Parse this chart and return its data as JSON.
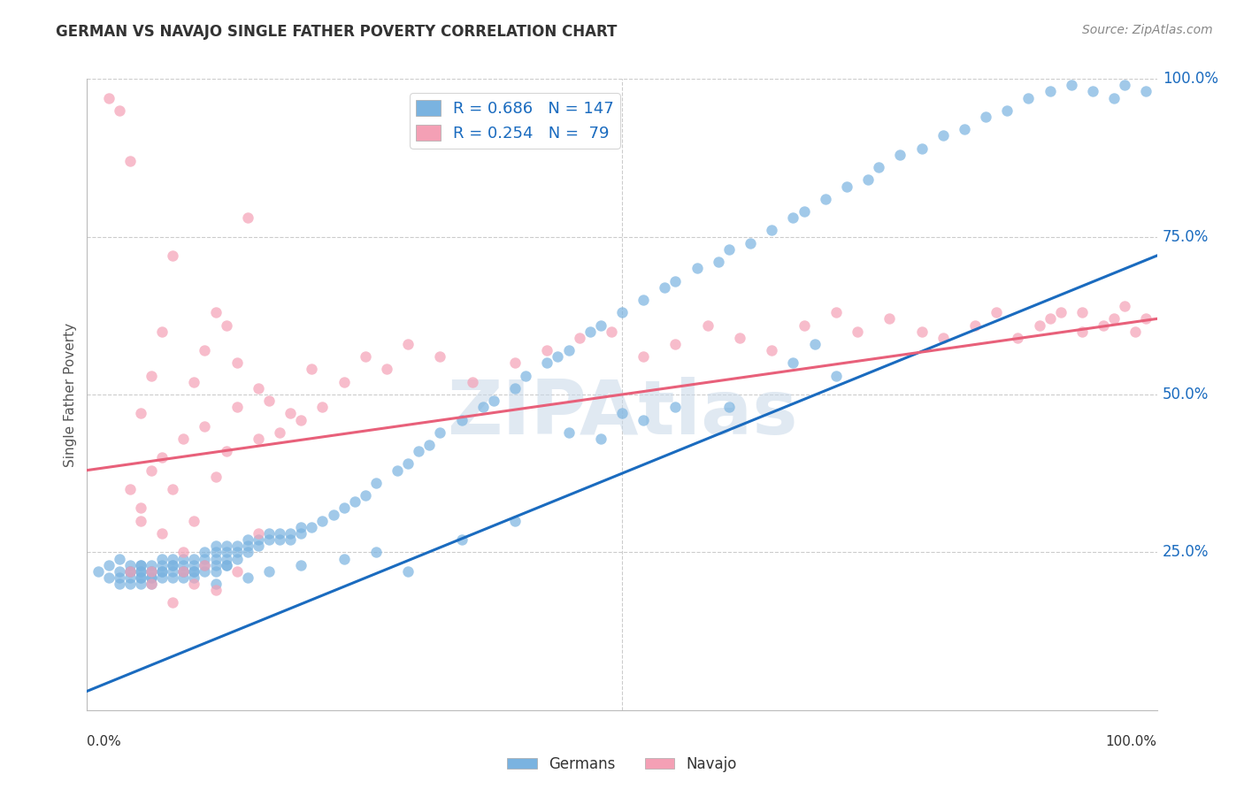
{
  "title": "GERMAN VS NAVAJO SINGLE FATHER POVERTY CORRELATION CHART",
  "source": "Source: ZipAtlas.com",
  "ylabel": "Single Father Poverty",
  "xlim": [
    0.0,
    1.0
  ],
  "ylim": [
    0.0,
    1.0
  ],
  "ytick_labels": [
    "25.0%",
    "50.0%",
    "75.0%",
    "100.0%"
  ],
  "ytick_values": [
    0.25,
    0.5,
    0.75,
    1.0
  ],
  "blue_R": 0.686,
  "blue_N": 147,
  "pink_R": 0.254,
  "pink_N": 79,
  "blue_color": "#7ab3e0",
  "pink_color": "#f4a0b5",
  "blue_line_color": "#1a6bbf",
  "pink_line_color": "#e8607a",
  "bottom_legend_blue": "Germans",
  "bottom_legend_pink": "Navajo",
  "watermark": "ZIPAtlas",
  "background_color": "#ffffff",
  "grid_color": "#cccccc",
  "title_color": "#333333",
  "blue_line": {
    "x0": 0.0,
    "x1": 1.0,
    "y0": 0.03,
    "y1": 0.72
  },
  "pink_line": {
    "x0": 0.0,
    "x1": 1.0,
    "y0": 0.38,
    "y1": 0.62
  },
  "blue_scatter_x": [
    0.01,
    0.02,
    0.02,
    0.03,
    0.03,
    0.03,
    0.03,
    0.04,
    0.04,
    0.04,
    0.04,
    0.04,
    0.05,
    0.05,
    0.05,
    0.05,
    0.05,
    0.05,
    0.05,
    0.06,
    0.06,
    0.06,
    0.06,
    0.06,
    0.06,
    0.07,
    0.07,
    0.07,
    0.07,
    0.07,
    0.08,
    0.08,
    0.08,
    0.08,
    0.08,
    0.09,
    0.09,
    0.09,
    0.09,
    0.09,
    0.1,
    0.1,
    0.1,
    0.1,
    0.1,
    0.11,
    0.11,
    0.11,
    0.11,
    0.12,
    0.12,
    0.12,
    0.12,
    0.12,
    0.13,
    0.13,
    0.13,
    0.13,
    0.14,
    0.14,
    0.14,
    0.15,
    0.15,
    0.15,
    0.16,
    0.16,
    0.17,
    0.17,
    0.18,
    0.18,
    0.19,
    0.19,
    0.2,
    0.2,
    0.21,
    0.22,
    0.23,
    0.24,
    0.25,
    0.26,
    0.27,
    0.29,
    0.3,
    0.31,
    0.32,
    0.33,
    0.35,
    0.37,
    0.38,
    0.4,
    0.41,
    0.43,
    0.44,
    0.45,
    0.47,
    0.48,
    0.5,
    0.52,
    0.54,
    0.55,
    0.57,
    0.59,
    0.6,
    0.62,
    0.64,
    0.66,
    0.67,
    0.69,
    0.71,
    0.73,
    0.74,
    0.76,
    0.78,
    0.8,
    0.82,
    0.84,
    0.86,
    0.88,
    0.9,
    0.92,
    0.94,
    0.96,
    0.97,
    0.99,
    0.66,
    0.68,
    0.7,
    0.55,
    0.52,
    0.45,
    0.48,
    0.3,
    0.27,
    0.24,
    0.2,
    0.17,
    0.15,
    0.13,
    0.12,
    0.5,
    0.6,
    0.35,
    0.4
  ],
  "blue_scatter_y": [
    0.22,
    0.21,
    0.23,
    0.21,
    0.22,
    0.2,
    0.24,
    0.22,
    0.21,
    0.23,
    0.2,
    0.22,
    0.22,
    0.21,
    0.23,
    0.2,
    0.22,
    0.21,
    0.23,
    0.22,
    0.21,
    0.23,
    0.22,
    0.21,
    0.2,
    0.22,
    0.23,
    0.21,
    0.22,
    0.24,
    0.23,
    0.22,
    0.21,
    0.23,
    0.24,
    0.22,
    0.21,
    0.23,
    0.22,
    0.24,
    0.22,
    0.23,
    0.24,
    0.21,
    0.22,
    0.23,
    0.22,
    0.24,
    0.25,
    0.24,
    0.23,
    0.22,
    0.25,
    0.26,
    0.25,
    0.24,
    0.23,
    0.26,
    0.25,
    0.24,
    0.26,
    0.26,
    0.25,
    0.27,
    0.27,
    0.26,
    0.27,
    0.28,
    0.27,
    0.28,
    0.28,
    0.27,
    0.29,
    0.28,
    0.29,
    0.3,
    0.31,
    0.32,
    0.33,
    0.34,
    0.36,
    0.38,
    0.39,
    0.41,
    0.42,
    0.44,
    0.46,
    0.48,
    0.49,
    0.51,
    0.53,
    0.55,
    0.56,
    0.57,
    0.6,
    0.61,
    0.63,
    0.65,
    0.67,
    0.68,
    0.7,
    0.71,
    0.73,
    0.74,
    0.76,
    0.78,
    0.79,
    0.81,
    0.83,
    0.84,
    0.86,
    0.88,
    0.89,
    0.91,
    0.92,
    0.94,
    0.95,
    0.97,
    0.98,
    0.99,
    0.98,
    0.97,
    0.99,
    0.98,
    0.55,
    0.58,
    0.53,
    0.48,
    0.46,
    0.44,
    0.43,
    0.22,
    0.25,
    0.24,
    0.23,
    0.22,
    0.21,
    0.23,
    0.2,
    0.47,
    0.48,
    0.27,
    0.3
  ],
  "pink_scatter_x": [
    0.02,
    0.03,
    0.04,
    0.04,
    0.05,
    0.05,
    0.06,
    0.06,
    0.06,
    0.07,
    0.07,
    0.08,
    0.08,
    0.09,
    0.09,
    0.1,
    0.1,
    0.11,
    0.11,
    0.12,
    0.12,
    0.13,
    0.13,
    0.14,
    0.14,
    0.15,
    0.16,
    0.16,
    0.17,
    0.18,
    0.19,
    0.2,
    0.21,
    0.22,
    0.24,
    0.26,
    0.28,
    0.3,
    0.33,
    0.36,
    0.4,
    0.43,
    0.46,
    0.49,
    0.52,
    0.55,
    0.58,
    0.61,
    0.64,
    0.67,
    0.7,
    0.72,
    0.75,
    0.78,
    0.8,
    0.83,
    0.85,
    0.87,
    0.89,
    0.91,
    0.93,
    0.96,
    0.98,
    0.99,
    0.97,
    0.95,
    0.93,
    0.9,
    0.04,
    0.06,
    0.08,
    0.1,
    0.12,
    0.14,
    0.05,
    0.07,
    0.09,
    0.11,
    0.16
  ],
  "pink_scatter_y": [
    0.97,
    0.95,
    0.87,
    0.35,
    0.32,
    0.47,
    0.38,
    0.53,
    0.22,
    0.4,
    0.6,
    0.35,
    0.72,
    0.43,
    0.22,
    0.3,
    0.52,
    0.45,
    0.57,
    0.37,
    0.63,
    0.41,
    0.61,
    0.48,
    0.55,
    0.78,
    0.51,
    0.43,
    0.49,
    0.44,
    0.47,
    0.46,
    0.54,
    0.48,
    0.52,
    0.56,
    0.54,
    0.58,
    0.56,
    0.52,
    0.55,
    0.57,
    0.59,
    0.6,
    0.56,
    0.58,
    0.61,
    0.59,
    0.57,
    0.61,
    0.63,
    0.6,
    0.62,
    0.6,
    0.59,
    0.61,
    0.63,
    0.59,
    0.61,
    0.63,
    0.6,
    0.62,
    0.6,
    0.62,
    0.64,
    0.61,
    0.63,
    0.62,
    0.22,
    0.2,
    0.17,
    0.2,
    0.19,
    0.22,
    0.3,
    0.28,
    0.25,
    0.23,
    0.28
  ]
}
